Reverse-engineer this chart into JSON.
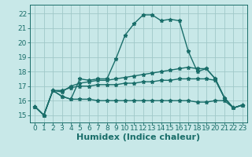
{
  "bg_color": "#c8e8e8",
  "grid_color": "#a0c8c8",
  "line_color": "#1a6e6a",
  "xlabel": "Humidex (Indice chaleur)",
  "x_ticks": [
    0,
    1,
    2,
    3,
    4,
    5,
    6,
    7,
    8,
    9,
    10,
    11,
    12,
    13,
    14,
    15,
    16,
    17,
    18,
    19,
    20,
    21,
    22,
    23
  ],
  "ylim": [
    14.5,
    22.6
  ],
  "xlim": [
    -0.5,
    23.5
  ],
  "y_ticks": [
    15,
    16,
    17,
    18,
    19,
    20,
    21,
    22
  ],
  "series": {
    "line1": [
      15.6,
      15.0,
      16.7,
      16.3,
      16.1,
      17.5,
      17.4,
      17.5,
      17.5,
      18.9,
      20.5,
      21.3,
      21.9,
      21.9,
      21.5,
      21.6,
      21.5,
      19.4,
      18.0,
      18.2,
      17.5,
      16.2,
      15.5,
      15.7
    ],
    "line2": [
      15.6,
      15.0,
      16.7,
      16.6,
      17.0,
      17.2,
      17.3,
      17.4,
      17.4,
      17.5,
      17.6,
      17.7,
      17.8,
      17.9,
      18.0,
      18.1,
      18.2,
      18.3,
      18.2,
      18.2,
      17.5,
      16.2,
      15.5,
      15.7
    ],
    "line3": [
      15.6,
      15.0,
      16.7,
      16.7,
      16.9,
      17.0,
      17.0,
      17.1,
      17.1,
      17.1,
      17.2,
      17.2,
      17.3,
      17.3,
      17.4,
      17.4,
      17.5,
      17.5,
      17.5,
      17.5,
      17.4,
      16.2,
      15.5,
      15.7
    ],
    "line4": [
      15.6,
      15.0,
      16.7,
      16.3,
      16.1,
      16.1,
      16.1,
      16.0,
      16.0,
      16.0,
      16.0,
      16.0,
      16.0,
      16.0,
      16.0,
      16.0,
      16.0,
      16.0,
      15.9,
      15.9,
      16.0,
      16.0,
      15.5,
      15.7
    ]
  },
  "tick_fontsize": 6.5,
  "xlabel_fontsize": 8,
  "linewidth": 1.0,
  "markersize": 3.5
}
